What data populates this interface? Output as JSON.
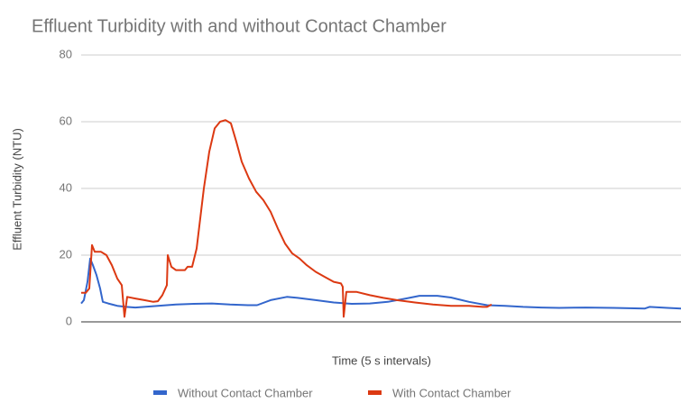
{
  "chart_data": {
    "type": "line",
    "title": "Effluent Turbidity with and without Contact Chamber",
    "xlabel": "Time (5 s intervals)",
    "ylabel": "Effluent Turbidity (NTU)",
    "xlim": [
      0,
      665
    ],
    "ylim": [
      0,
      80
    ],
    "yticks": [
      0,
      20,
      40,
      60,
      80
    ],
    "grid": true,
    "legend": "bottom",
    "series": [
      {
        "name": "Without Contact Chamber",
        "color": "#3366cc",
        "x": [
          0,
          3,
          7,
          10,
          13,
          17,
          21,
          24,
          30,
          40,
          50,
          60,
          70,
          85,
          105,
          125,
          145,
          165,
          185,
          195,
          210,
          228,
          240,
          260,
          280,
          300,
          320,
          340,
          360,
          375,
          395,
          410,
          430,
          450,
          470,
          490,
          510,
          530,
          560,
          590,
          625,
          630,
          650,
          665
        ],
        "values": [
          5.5,
          6.5,
          12,
          19,
          17,
          14,
          10,
          6,
          5.5,
          4.8,
          4.5,
          4.3,
          4.5,
          4.8,
          5.2,
          5.4,
          5.5,
          5.2,
          5.0,
          5.0,
          6.5,
          7.5,
          7.2,
          6.5,
          5.8,
          5.4,
          5.5,
          6.0,
          7.0,
          7.8,
          7.8,
          7.3,
          6.0,
          5.0,
          4.8,
          4.5,
          4.3,
          4.2,
          4.3,
          4.2,
          4.0,
          4.5,
          4.2,
          4.0
        ]
      },
      {
        "name": "With Contact Chamber",
        "color": "#dc3912",
        "x": [
          0,
          5,
          9,
          12,
          15,
          22,
          28,
          34,
          40,
          45,
          48,
          51,
          60,
          70,
          80,
          85,
          90,
          95,
          96,
          100,
          105,
          115,
          118,
          123,
          128,
          136,
          142,
          148,
          154,
          160,
          166,
          172,
          178,
          186,
          194,
          202,
          210,
          218,
          226,
          234,
          242,
          250,
          260,
          270,
          280,
          288,
          290,
          291,
          294,
          305,
          320,
          335,
          350,
          370,
          390,
          410,
          430,
          445,
          450,
          455
        ],
        "values": [
          8.7,
          8.7,
          10,
          23,
          21,
          21,
          20,
          17,
          13,
          11,
          1.5,
          7.5,
          7,
          6.5,
          6,
          6.2,
          8,
          11,
          20,
          16.5,
          15.5,
          15.5,
          16.5,
          16.5,
          22,
          40,
          51,
          58,
          60,
          60.5,
          59.5,
          54,
          48,
          43,
          39,
          36.5,
          33,
          28,
          23.5,
          20.5,
          19,
          17,
          15,
          13.5,
          12,
          11.5,
          10.5,
          1.5,
          9,
          9,
          8,
          7.2,
          6.5,
          5.8,
          5.2,
          4.8,
          4.8,
          4.5,
          4.5,
          5.2
        ]
      }
    ]
  }
}
